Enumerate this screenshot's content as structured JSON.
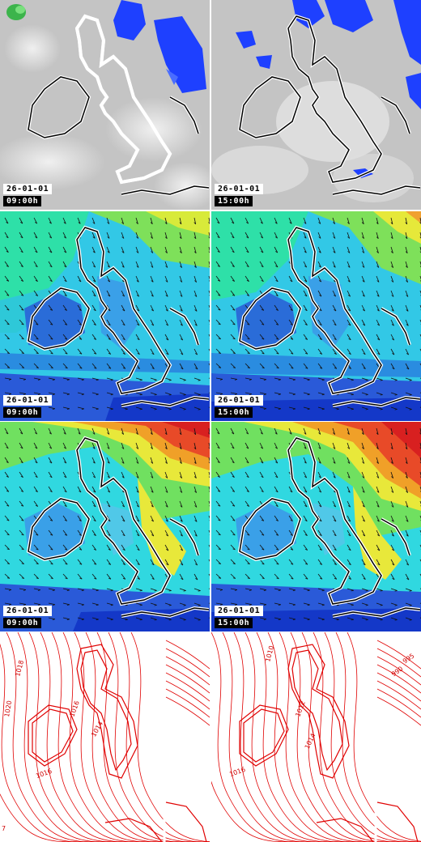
{
  "panels": [
    {
      "row": "cloud",
      "date": "26-01-01",
      "time": "09:00h"
    },
    {
      "row": "cloud",
      "date": "26-01-01",
      "time": "15:00h"
    },
    {
      "row": "wind10",
      "date": "26-01-01",
      "time": "09:00h"
    },
    {
      "row": "wind10",
      "date": "26-01-01",
      "time": "15:00h"
    },
    {
      "row": "gust",
      "date": "26-01-01",
      "time": "09:00h"
    },
    {
      "row": "gust",
      "date": "26-01-01",
      "time": "15:00h"
    },
    {
      "row": "pressure",
      "date": "",
      "time": ""
    },
    {
      "row": "pressure",
      "date": "",
      "time": ""
    }
  ],
  "isobar_labels": {
    "left": [
      "1018",
      "1020",
      "1016",
      "1014",
      "1016",
      "7"
    ],
    "right": [
      "1010",
      "1012",
      "1014",
      "1016",
      "995",
      "990"
    ]
  },
  "colors": {
    "coast": "#000000",
    "coast_halo": "#ffffff",
    "cloud_bg": "#c8c8c8",
    "precip": "#1e40ff",
    "isobar": "#e00000"
  }
}
